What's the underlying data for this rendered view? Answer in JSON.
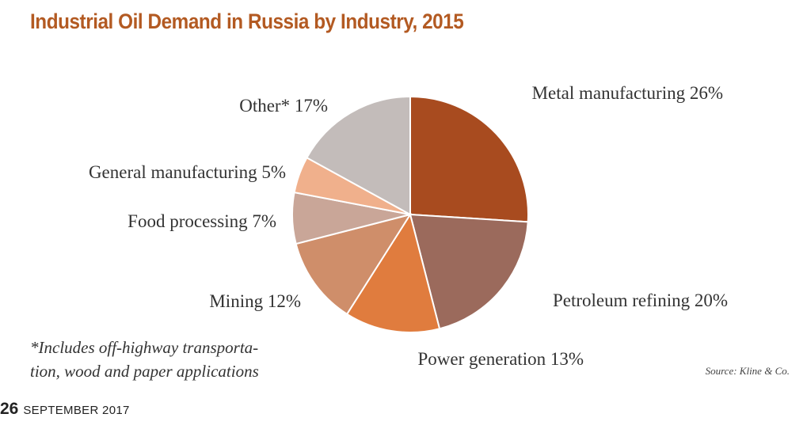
{
  "chart_data": {
    "type": "pie",
    "title": "Industrial Oil Demand in Russia by Industry, 2015",
    "slices": [
      {
        "label": "Metal manufacturing",
        "value": 26,
        "display": "Metal manufacturing 26%",
        "color": "#a84b1f"
      },
      {
        "label": "Petroleum refining",
        "value": 20,
        "display": "Petroleum refining 20%",
        "color": "#9b6a5c"
      },
      {
        "label": "Power generation",
        "value": 13,
        "display": "Power generation 13%",
        "color": "#e07c3e"
      },
      {
        "label": "Mining",
        "value": 12,
        "display": "Mining 12%",
        "color": "#cf8e6a"
      },
      {
        "label": "Food processing",
        "value": 7,
        "display": "Food processing 7%",
        "color": "#c9a698"
      },
      {
        "label": "General manufacturing",
        "value": 5,
        "display": "General manufacturing 5%",
        "color": "#f0b08c"
      },
      {
        "label": "Other*",
        "value": 17,
        "display": "Other* 17%",
        "color": "#c3bcba"
      }
    ]
  },
  "footnote": {
    "line1": "*Includes off-highway transporta-",
    "line2": "tion, wood and paper applications"
  },
  "source": "Source: Kline & Co.",
  "folio": {
    "page_number": "26",
    "issue": "SEPTEMBER 2017"
  },
  "colors": {
    "title": "#b35a22",
    "slice_border": "#ffffff"
  }
}
